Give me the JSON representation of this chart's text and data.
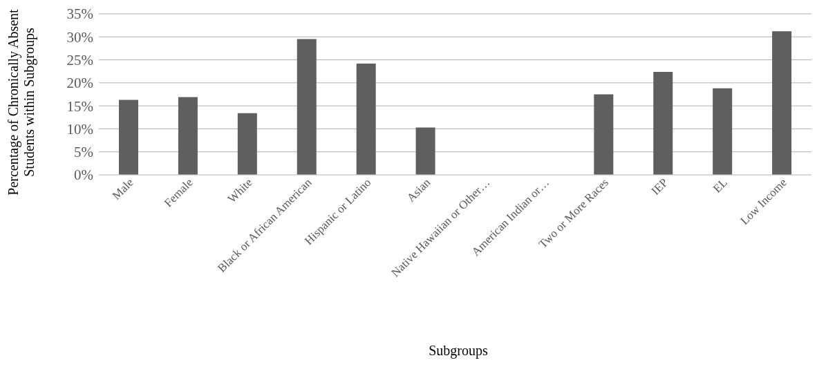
{
  "chart_data": {
    "type": "bar",
    "xlabel": "Subgroups",
    "ylabel": "Percentage of Chronically Absent Students within Subgroups",
    "categories": [
      "Male",
      "Female",
      "White",
      "Black or African American",
      "Hispanic or Latino",
      "Asian",
      "Native Hawaiian or Other…",
      "American Indian or…",
      "Two or More Races",
      "IEP",
      "EL",
      "Low Income"
    ],
    "values": [
      16.3,
      16.9,
      13.4,
      29.5,
      24.2,
      10.3,
      null,
      null,
      17.5,
      22.4,
      18.8,
      31.2
    ],
    "color": "#5f5f5f",
    "ylim": [
      0,
      35
    ],
    "yticks": [
      {
        "value": 0,
        "label": "0%"
      },
      {
        "value": 5,
        "label": "5%"
      },
      {
        "value": 10,
        "label": "10%"
      },
      {
        "value": 15,
        "label": "15%"
      },
      {
        "value": 20,
        "label": "20%"
      },
      {
        "value": 25,
        "label": "25%"
      },
      {
        "value": 30,
        "label": "30%"
      },
      {
        "value": 35,
        "label": "35%"
      }
    ],
    "grid": true
  }
}
